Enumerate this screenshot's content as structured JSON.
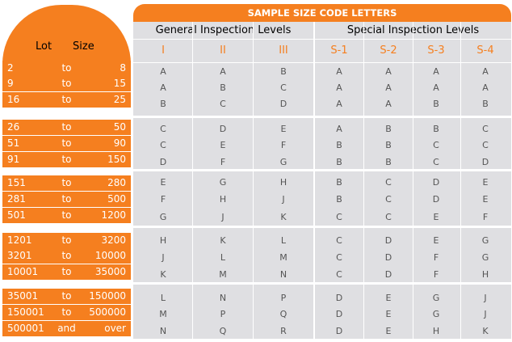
{
  "lot": {
    "header_lot": "Lot",
    "header_size": "Size",
    "ranges": [
      {
        "from": "2",
        "to": "to",
        "thru": "8"
      },
      {
        "from": "9",
        "to": "to",
        "thru": "15"
      },
      {
        "from": "16",
        "to": "to",
        "thru": "25"
      },
      {
        "from": "26",
        "to": "to",
        "thru": "50"
      },
      {
        "from": "51",
        "to": "to",
        "thru": "90"
      },
      {
        "from": "91",
        "to": "to",
        "thru": "150"
      },
      {
        "from": "151",
        "to": "to",
        "thru": "280"
      },
      {
        "from": "281",
        "to": "to",
        "thru": "500"
      },
      {
        "from": "501",
        "to": "to",
        "thru": "1200"
      },
      {
        "from": "1201",
        "to": "to",
        "thru": "3200"
      },
      {
        "from": "3201",
        "to": "to",
        "thru": "10000"
      },
      {
        "from": "10001",
        "to": "to",
        "thru": "35000"
      },
      {
        "from": "35001",
        "to": "to",
        "thru": "150000"
      },
      {
        "from": "150001",
        "to": "to",
        "thru": "500000"
      },
      {
        "from": "500001",
        "to": "and",
        "thru": "over"
      }
    ]
  },
  "table": {
    "title": "SAMPLE SIZE CODE LETTERS",
    "general_label": "General Inspection Levels",
    "special_label": "Special Inspection Levels",
    "columns": [
      "I",
      "II",
      "III",
      "S-1",
      "S-2",
      "S-3",
      "S-4"
    ],
    "rows": [
      [
        "A",
        "A",
        "B",
        "A",
        "A",
        "A",
        "A"
      ],
      [
        "A",
        "B",
        "C",
        "A",
        "A",
        "A",
        "A"
      ],
      [
        "B",
        "C",
        "D",
        "A",
        "A",
        "B",
        "B"
      ],
      [
        "C",
        "D",
        "E",
        "A",
        "B",
        "B",
        "C"
      ],
      [
        "C",
        "E",
        "F",
        "B",
        "B",
        "C",
        "C"
      ],
      [
        "D",
        "F",
        "G",
        "B",
        "B",
        "C",
        "D"
      ],
      [
        "E",
        "G",
        "H",
        "B",
        "C",
        "D",
        "E"
      ],
      [
        "F",
        "H",
        "J",
        "B",
        "C",
        "D",
        "E"
      ],
      [
        "G",
        "J",
        "K",
        "C",
        "C",
        "E",
        "F"
      ],
      [
        "H",
        "K",
        "L",
        "C",
        "D",
        "E",
        "G"
      ],
      [
        "J",
        "L",
        "M",
        "C",
        "D",
        "F",
        "G"
      ],
      [
        "K",
        "M",
        "N",
        "C",
        "D",
        "F",
        "H"
      ],
      [
        "L",
        "N",
        "P",
        "D",
        "E",
        "G",
        "J"
      ],
      [
        "M",
        "P",
        "Q",
        "D",
        "E",
        "G",
        "J"
      ],
      [
        "N",
        "Q",
        "R",
        "D",
        "E",
        "H",
        "K"
      ]
    ]
  },
  "colors": {
    "accent": "#f57f1f",
    "grid": "#dfdfe2",
    "cell_text": "#555555"
  }
}
